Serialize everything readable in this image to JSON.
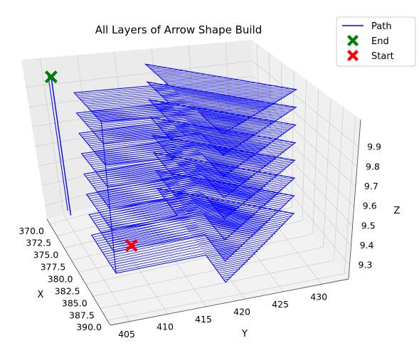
{
  "chart_data": {
    "type": "line3d",
    "title": "All Layers of Arrow Shape Build",
    "xlabel": "X",
    "ylabel": "Y",
    "zlabel": "Z",
    "x_ticks": [
      "370.0",
      "372.5",
      "375.0",
      "377.5",
      "380.0",
      "382.5",
      "385.0",
      "387.5",
      "390.0"
    ],
    "y_ticks": [
      "405",
      "410",
      "415",
      "420",
      "425",
      "430"
    ],
    "z_ticks": [
      "9.3",
      "9.4",
      "9.5",
      "9.6",
      "9.7",
      "9.8",
      "9.9"
    ],
    "xlim": [
      369.0,
      391.0
    ],
    "ylim": [
      402.5,
      433.5
    ],
    "zlim": [
      9.23,
      10.04
    ],
    "grid": true,
    "legend_position": "top-right",
    "legend": [
      {
        "label": "Path",
        "marker": "line",
        "color": "#0000ff"
      },
      {
        "label": "End",
        "marker": "X",
        "color": "#008000"
      },
      {
        "label": "Start",
        "marker": "X",
        "color": "#ff0000"
      }
    ],
    "series": [
      {
        "name": "Path",
        "color": "#0000ff",
        "layer_z": [
          9.3,
          9.4,
          9.5,
          9.6,
          9.7,
          9.8,
          9.9,
          10.0
        ],
        "layer_shape": {
          "x_range": [
            371.0,
            390.0
          ],
          "y_range": [
            406.0,
            432.0
          ],
          "shaft_y": [
            406.0,
            418.0
          ],
          "shaft_x": [
            376.5,
            384.5
          ],
          "head_base_y": 418.0,
          "head_tip": [
            380.5,
            432.0
          ]
        }
      }
    ],
    "start_point": {
      "label": "Start",
      "x": 380.0,
      "y": 410.0,
      "z": 9.3,
      "color": "#ff0000"
    },
    "end_point": {
      "label": "End",
      "x": 372.0,
      "y": 405.0,
      "z": 10.0,
      "color": "#008000"
    }
  }
}
